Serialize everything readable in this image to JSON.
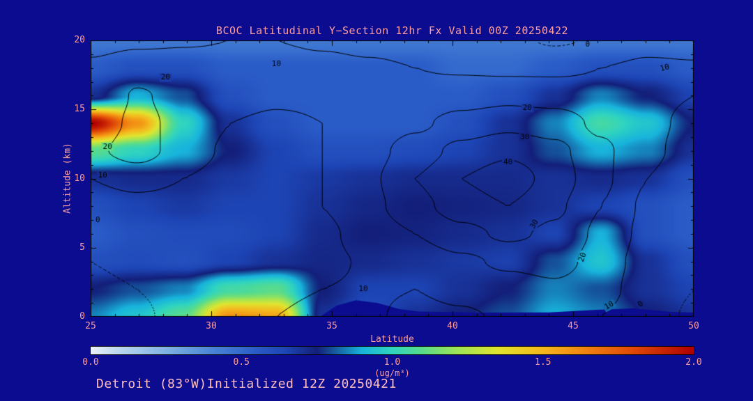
{
  "colors": {
    "background": "#0b0c90",
    "axis_text": "#ff9d9d",
    "footer_text": "#ffbdbd",
    "contour_line": "#000000"
  },
  "footer": {
    "text": "Detroit (83°W)Initialized 12Z 20250421"
  },
  "chart_data": {
    "type": "heatmap",
    "title": "BCOC Latitudinal Y−Section 12hr  Fx Valid 00Z 20250422",
    "xlabel": "Latitude",
    "ylabel": "Altitude (km)",
    "xlim": [
      25,
      50
    ],
    "ylim": [
      0,
      20
    ],
    "x_ticks": [
      25,
      30,
      35,
      40,
      45,
      50
    ],
    "y_ticks": [
      0,
      5,
      10,
      15,
      20
    ],
    "grid": false,
    "colorbar": {
      "min": 0.0,
      "max": 2.0,
      "tick_labels": [
        "0.0",
        "0.5",
        "1.0",
        "1.5",
        "2.0"
      ],
      "unit_label": "(ug/m³)"
    },
    "colormap": [
      [
        0.0,
        "#e9f1f8"
      ],
      [
        0.1,
        "#b9d5ee"
      ],
      [
        0.25,
        "#7fb2e4"
      ],
      [
        0.4,
        "#4a86d8"
      ],
      [
        0.55,
        "#2a5cc8"
      ],
      [
        0.65,
        "#1d44b4"
      ],
      [
        0.75,
        "#131f7a"
      ],
      [
        0.9,
        "#18b4dc"
      ],
      [
        1.0,
        "#30d4c0"
      ],
      [
        1.1,
        "#58dc8c"
      ],
      [
        1.22,
        "#a0e455"
      ],
      [
        1.35,
        "#e0e430"
      ],
      [
        1.5,
        "#f4b81e"
      ],
      [
        1.65,
        "#f08010"
      ],
      [
        1.8,
        "#e04808"
      ],
      [
        2.0,
        "#b00000"
      ]
    ],
    "fill_grid": {
      "x0": 25,
      "x1": 50,
      "y0": 0,
      "y1": 20,
      "values": [
        [
          0.85,
          0.95,
          1.1,
          1.6,
          1.55,
          0.7,
          0.6,
          0.7,
          0.75,
          0.8,
          0.9,
          0.85,
          0.75,
          0.7
        ],
        [
          0.75,
          0.8,
          0.85,
          1.05,
          1.1,
          0.75,
          0.65,
          0.65,
          0.7,
          0.75,
          0.85,
          0.8,
          0.7,
          0.65
        ],
        [
          0.6,
          0.62,
          0.6,
          0.65,
          0.7,
          0.73,
          0.72,
          0.7,
          0.68,
          0.66,
          0.8,
          0.95,
          0.7,
          0.6
        ],
        [
          0.55,
          0.6,
          0.62,
          0.62,
          0.65,
          0.72,
          0.75,
          0.74,
          0.72,
          0.7,
          0.65,
          0.9,
          0.6,
          0.55
        ],
        [
          0.6,
          0.65,
          0.68,
          0.65,
          0.65,
          0.7,
          0.73,
          0.75,
          0.74,
          0.73,
          0.7,
          0.65,
          0.6,
          0.55
        ],
        [
          0.7,
          0.72,
          0.72,
          0.68,
          0.65,
          0.68,
          0.7,
          0.72,
          0.72,
          0.72,
          0.7,
          0.72,
          0.7,
          0.6
        ],
        [
          1.1,
          1.0,
          0.9,
          0.75,
          0.65,
          0.6,
          0.6,
          0.62,
          0.65,
          0.7,
          0.8,
          0.9,
          0.85,
          0.7
        ],
        [
          2.0,
          1.6,
          1.0,
          0.7,
          0.6,
          0.55,
          0.55,
          0.55,
          0.6,
          0.7,
          0.85,
          1.05,
          0.95,
          0.75
        ],
        [
          0.7,
          0.9,
          0.8,
          0.6,
          0.55,
          0.55,
          0.55,
          0.55,
          0.55,
          0.6,
          0.7,
          0.85,
          0.75,
          0.65
        ],
        [
          0.55,
          0.6,
          0.6,
          0.55,
          0.55,
          0.55,
          0.55,
          0.55,
          0.5,
          0.5,
          0.55,
          0.6,
          0.6,
          0.55
        ],
        [
          0.45,
          0.45,
          0.45,
          0.45,
          0.45,
          0.45,
          0.45,
          0.45,
          0.45,
          0.45,
          0.45,
          0.45,
          0.45,
          0.45
        ]
      ]
    },
    "contour_grid": {
      "x0": 25,
      "x1": 50,
      "y0": 0,
      "y1": 20,
      "levels": [
        0,
        10,
        20,
        30,
        40
      ],
      "values": [
        [
          -2,
          -1,
          2,
          6,
          10,
          13,
          11,
          8,
          9,
          11,
          14,
          10,
          3,
          -1
        ],
        [
          -1,
          0,
          2,
          5,
          8,
          10,
          11,
          10,
          12,
          15,
          18,
          14,
          4,
          0
        ],
        [
          0,
          1,
          2,
          3,
          5,
          8,
          11,
          14,
          18,
          22,
          24,
          16,
          5,
          1
        ],
        [
          1,
          3,
          4,
          4,
          5,
          8,
          14,
          20,
          27,
          32,
          28,
          18,
          7,
          2
        ],
        [
          4,
          6,
          6,
          5,
          6,
          10,
          17,
          27,
          35,
          40,
          32,
          20,
          8,
          3
        ],
        [
          10,
          14,
          10,
          6,
          7,
          10,
          18,
          30,
          40,
          46,
          36,
          22,
          10,
          4
        ],
        [
          18,
          24,
          16,
          8,
          8,
          10,
          16,
          25,
          33,
          38,
          33,
          22,
          12,
          6
        ],
        [
          14,
          22,
          18,
          10,
          9,
          10,
          13,
          18,
          24,
          27,
          25,
          18,
          12,
          8
        ],
        [
          10,
          21,
          17,
          12,
          11,
          11,
          12,
          13,
          15,
          17,
          16,
          14,
          12,
          10
        ],
        [
          12,
          16,
          15,
          14,
          13,
          12,
          11,
          10,
          9,
          8,
          8,
          10,
          12,
          11
        ],
        [
          6,
          8,
          9,
          10,
          10,
          9,
          8,
          7,
          5,
          2,
          -1,
          1,
          6,
          6
        ]
      ]
    },
    "contour_labels": [
      [
        45.6,
        19.7,
        "0",
        0
      ],
      [
        32.7,
        18.3,
        "10",
        0
      ],
      [
        48.8,
        18.0,
        "10",
        -15
      ],
      [
        28.1,
        17.3,
        "20",
        0
      ],
      [
        43.1,
        15.1,
        "20",
        0
      ],
      [
        43.0,
        13.0,
        "30",
        0
      ],
      [
        42.3,
        11.2,
        "40",
        0
      ],
      [
        25.7,
        12.3,
        "20",
        0
      ],
      [
        25.5,
        10.2,
        "10",
        0
      ],
      [
        25.3,
        7.0,
        "0",
        0
      ],
      [
        43.4,
        6.7,
        "30",
        -60
      ],
      [
        45.4,
        4.3,
        "20",
        -70
      ],
      [
        36.3,
        2.0,
        "10",
        0
      ],
      [
        46.5,
        0.8,
        "10",
        -30
      ],
      [
        47.8,
        0.9,
        "0",
        -40
      ]
    ],
    "terrain": [
      [
        34.5,
        0
      ],
      [
        35.2,
        0.8
      ],
      [
        36.0,
        1.2
      ],
      [
        36.9,
        1.0
      ],
      [
        37.8,
        0.55
      ],
      [
        38.6,
        0.38
      ],
      [
        41.0,
        0.3
      ],
      [
        44.0,
        0.32
      ],
      [
        46.0,
        0.5
      ],
      [
        47.5,
        0.6
      ],
      [
        49.0,
        0.35
      ],
      [
        50.0,
        0.3
      ],
      [
        50.0,
        0
      ]
    ]
  }
}
